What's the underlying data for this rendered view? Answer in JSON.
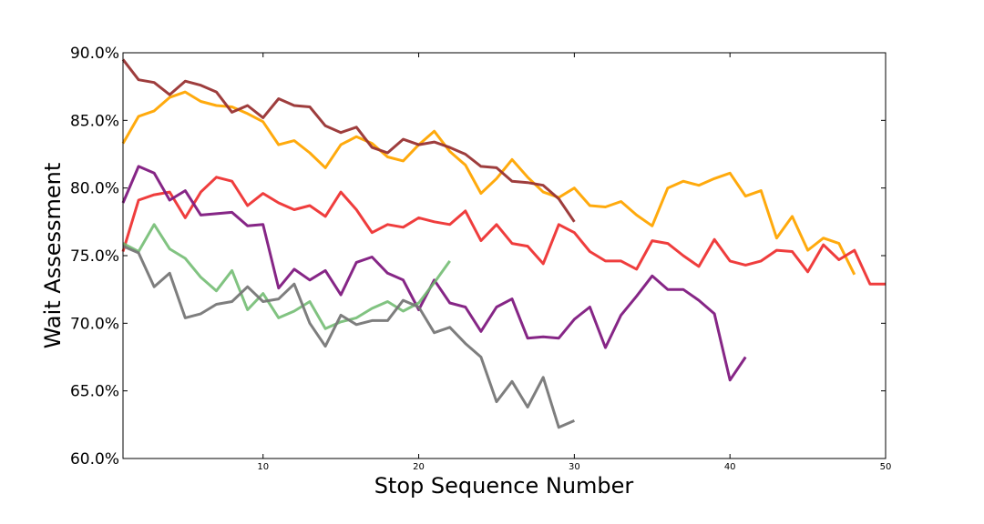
{
  "chart_data": {
    "type": "line",
    "title": "",
    "xlabel": "Stop Sequence Number",
    "ylabel": "Wait Assessment",
    "xlim": [
      1,
      50
    ],
    "ylim": [
      60.0,
      90.0
    ],
    "x_ticks": [
      10,
      20,
      30,
      40,
      50
    ],
    "y_ticks": [
      60.0,
      65.0,
      70.0,
      75.0,
      80.0,
      85.0,
      90.0
    ],
    "y_tick_labels": [
      "60.0%",
      "65.0%",
      "70.0%",
      "75.0%",
      "80.0%",
      "85.0%",
      "90.0%"
    ],
    "grid": false,
    "legend": "none",
    "series": [
      {
        "color": "#ffa500",
        "x": [
          1,
          2,
          3,
          4,
          5,
          6,
          7,
          8,
          9,
          10,
          11,
          12,
          13,
          14,
          15,
          16,
          17,
          18,
          19,
          20,
          21,
          22,
          23,
          24,
          25,
          26,
          27,
          28,
          29,
          30,
          31,
          32,
          33,
          34,
          35,
          36,
          37,
          38,
          39,
          40,
          41,
          42,
          43,
          44,
          45,
          46,
          47,
          48
        ],
        "values": [
          83.3,
          85.3,
          85.7,
          86.7,
          87.1,
          86.4,
          86.1,
          86.0,
          85.5,
          84.9,
          83.2,
          83.5,
          82.6,
          81.5,
          83.2,
          83.8,
          83.3,
          82.3,
          82.0,
          83.2,
          84.2,
          82.7,
          81.7,
          79.6,
          80.7,
          82.1,
          80.8,
          79.7,
          79.3,
          80.0,
          78.7,
          78.6,
          79.0,
          78.0,
          77.2,
          80.0,
          80.5,
          80.2,
          80.7,
          81.1,
          79.4,
          79.8,
          76.3,
          77.9,
          75.4,
          76.3,
          75.9,
          73.6
        ]
      },
      {
        "color": "#ee3333",
        "x": [
          1,
          2,
          3,
          4,
          5,
          6,
          7,
          8,
          9,
          10,
          11,
          12,
          13,
          14,
          15,
          16,
          17,
          18,
          19,
          20,
          21,
          22,
          23,
          24,
          25,
          26,
          27,
          28,
          29,
          30,
          31,
          32,
          33,
          34,
          35,
          36,
          37,
          38,
          39,
          40,
          41,
          42,
          43,
          44,
          45,
          46,
          47,
          48,
          49,
          50
        ],
        "values": [
          75.3,
          79.1,
          79.5,
          79.7,
          77.8,
          79.7,
          80.8,
          80.5,
          78.7,
          79.6,
          78.9,
          78.4,
          78.7,
          77.9,
          79.7,
          78.4,
          76.7,
          77.3,
          77.1,
          77.8,
          77.5,
          77.3,
          78.3,
          76.1,
          77.3,
          75.9,
          75.7,
          74.4,
          77.3,
          76.7,
          75.3,
          74.6,
          74.6,
          74.0,
          76.1,
          75.9,
          75.0,
          74.2,
          76.2,
          74.6,
          74.3,
          74.6,
          75.4,
          75.3,
          73.8,
          75.8,
          74.7,
          75.4,
          72.9,
          72.9
        ]
      },
      {
        "color": "#993333",
        "x": [
          1,
          2,
          3,
          4,
          5,
          6,
          7,
          8,
          9,
          10,
          11,
          12,
          13,
          14,
          15,
          16,
          17,
          18,
          19,
          20,
          21,
          22,
          23,
          24,
          25,
          26,
          27,
          28,
          29,
          30
        ],
        "values": [
          89.5,
          88.0,
          87.8,
          86.9,
          87.9,
          87.6,
          87.1,
          85.6,
          86.1,
          85.2,
          86.6,
          86.1,
          86.0,
          84.6,
          84.1,
          84.5,
          83.0,
          82.6,
          83.6,
          83.2,
          83.4,
          83.0,
          82.5,
          81.6,
          81.5,
          80.5,
          80.4,
          80.2,
          79.2,
          77.5
        ]
      },
      {
        "color": "#801a80",
        "x": [
          1,
          2,
          3,
          4,
          5,
          6,
          7,
          8,
          9,
          10,
          11,
          12,
          13,
          14,
          15,
          16,
          17,
          18,
          19,
          20,
          21,
          22,
          23,
          24,
          25,
          26,
          27,
          28,
          29,
          30,
          31,
          32,
          33,
          34,
          35,
          36,
          37,
          38,
          39,
          40,
          41
        ],
        "values": [
          78.9,
          81.6,
          81.1,
          79.1,
          79.8,
          78.0,
          78.1,
          78.2,
          77.2,
          77.3,
          72.6,
          74.0,
          73.2,
          73.9,
          72.1,
          74.5,
          74.9,
          73.7,
          73.2,
          71.0,
          73.2,
          71.5,
          71.2,
          69.4,
          71.2,
          71.8,
          68.9,
          69.0,
          68.9,
          70.3,
          71.2,
          68.2,
          70.6,
          72.0,
          73.5,
          72.5,
          72.5,
          71.7,
          70.7,
          65.8,
          67.5
        ]
      },
      {
        "color": "#6bb86b",
        "x": [
          1,
          2,
          3,
          4,
          5,
          6,
          7,
          8,
          9,
          10,
          11,
          12,
          13,
          14,
          15,
          16,
          17,
          18,
          19,
          20,
          21,
          22
        ],
        "values": [
          75.9,
          75.3,
          77.3,
          75.5,
          74.8,
          73.4,
          72.4,
          73.9,
          71.0,
          72.2,
          70.4,
          70.9,
          71.6,
          69.6,
          70.1,
          70.4,
          71.1,
          71.6,
          70.9,
          71.5,
          73.0,
          74.6
        ]
      },
      {
        "color": "#777777",
        "x": [
          1,
          2,
          3,
          4,
          5,
          6,
          7,
          8,
          9,
          10,
          11,
          12,
          13,
          14,
          15,
          16,
          17,
          18,
          19,
          20,
          21,
          22,
          23,
          24,
          25,
          26,
          27,
          28,
          29,
          30
        ],
        "values": [
          75.7,
          75.2,
          72.7,
          73.7,
          70.4,
          70.7,
          71.4,
          71.6,
          72.7,
          71.6,
          71.8,
          72.9,
          70.0,
          68.3,
          70.6,
          69.9,
          70.2,
          70.2,
          71.7,
          71.2,
          69.3,
          69.7,
          68.5,
          67.5,
          64.2,
          65.7,
          63.8,
          66.0,
          62.3,
          62.8
        ]
      }
    ]
  }
}
